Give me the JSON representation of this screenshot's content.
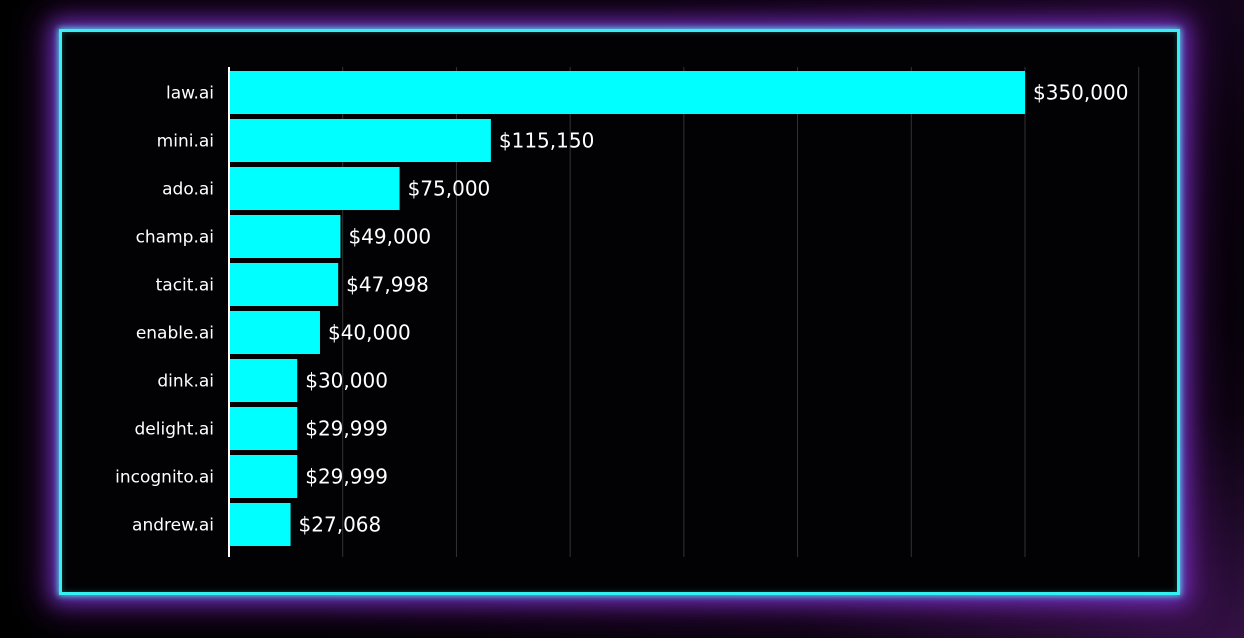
{
  "colors": {
    "bar": "#00ffff",
    "frame": "#35f0f0",
    "glow": "#a040e0",
    "text": "#ffffff",
    "grid": "#333333",
    "axis": "#ffffff",
    "background": "#000000"
  },
  "chart_data": {
    "type": "bar",
    "orientation": "horizontal",
    "categories": [
      "law.ai",
      "mini.ai",
      "ado.ai",
      "champ.ai",
      "tacit.ai",
      "enable.ai",
      "dink.ai",
      "delight.ai",
      "incognito.ai",
      "andrew.ai"
    ],
    "values": [
      350000,
      115150,
      75000,
      49000,
      47998,
      40000,
      30000,
      29999,
      29999,
      27068
    ],
    "value_labels": [
      "$350,000",
      "$115,150",
      "$75,000",
      "$49,000",
      "$47,998",
      "$40,000",
      "$30,000",
      "$29,999",
      "$29,999",
      "$27,068"
    ],
    "title": "",
    "xlabel": "",
    "ylabel": "",
    "xlim": [
      0,
      400000
    ],
    "grid": true,
    "legend": "none"
  }
}
